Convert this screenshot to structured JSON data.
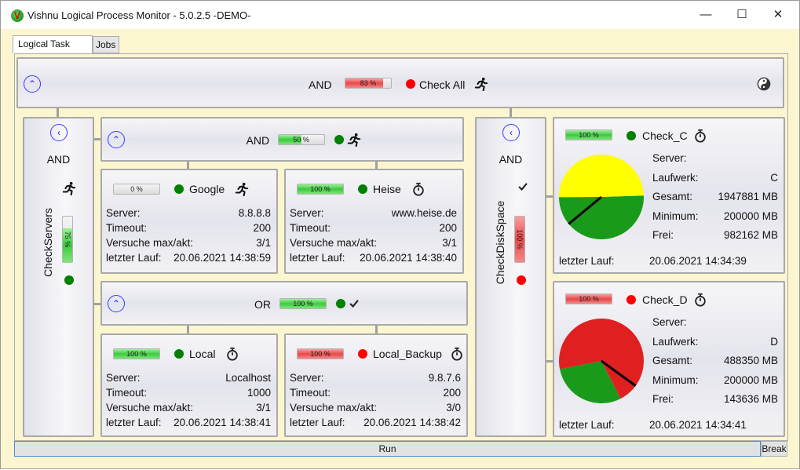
{
  "window": {
    "title": "Vishnu Logical Process Monitor - 5.0.2.5  -DEMO-",
    "app_icon_letter": "V",
    "minimize": "—",
    "maximize": "☐",
    "close": "✕"
  },
  "tabs": [
    {
      "label": "Logical Task Tree",
      "active": true
    },
    {
      "label": "Jobs",
      "active": false
    }
  ],
  "colors": {
    "green": "#008000",
    "red": "#ff0000",
    "pie_used_ok": "#ffff00",
    "pie_free": "#1a9a1a",
    "pie_used_bad": "#e02020"
  },
  "root": {
    "operator": "AND",
    "progress": 83,
    "progress_label": "83 %",
    "progress_color": "red",
    "status": "red",
    "name": "Check All",
    "state_icon": "runner-icon",
    "right_icon": "yin-yang-icon"
  },
  "check_servers": {
    "name": "CheckServers",
    "operator": "AND",
    "progress": 75,
    "progress_label": "75 %",
    "progress_color": "green",
    "status": "green",
    "state_icon": "runner-icon"
  },
  "and_group": {
    "operator": "AND",
    "progress": 50,
    "progress_label": "50 %",
    "progress_color": "green",
    "status": "green",
    "state_icon": "runner-icon"
  },
  "or_group": {
    "operator": "OR",
    "progress": 100,
    "progress_label": "100 %",
    "progress_color": "green",
    "status": "green",
    "state_icon": "check-icon"
  },
  "labels": {
    "server": "Server:",
    "timeout": "Timeout:",
    "versuche": "Versuche max/akt:",
    "letzter_lauf": "letzter Lauf:",
    "laufwerk": "Laufwerk:",
    "gesamt": "Gesamt:",
    "minimum": "Minimum:",
    "frei": "Frei:"
  },
  "tasks": [
    {
      "name": "Google",
      "progress": 0,
      "progress_label": "0 %",
      "progress_color": "green",
      "status": "green",
      "state_icon": "runner-icon",
      "server": "8.8.8.8",
      "timeout": "200",
      "versuche": "3/1",
      "letzter_lauf": "20.06.2021 14:38:59"
    },
    {
      "name": "Heise",
      "progress": 100,
      "progress_label": "100 %",
      "progress_color": "green",
      "status": "green",
      "state_icon": "stopwatch-icon",
      "server": "www.heise.de",
      "timeout": "200",
      "versuche": "3/1",
      "letzter_lauf": "20.06.2021 14:38:40"
    },
    {
      "name": "Local",
      "progress": 100,
      "progress_label": "100 %",
      "progress_color": "green",
      "status": "green",
      "state_icon": "stopwatch-icon",
      "server": "Localhost",
      "timeout": "1000",
      "versuche": "3/1",
      "letzter_lauf": "20.06.2021 14:38:41"
    },
    {
      "name": "Local_Backup",
      "progress": 100,
      "progress_label": "100 %",
      "progress_color": "red",
      "status": "red",
      "state_icon": "stopwatch-icon",
      "server": "9.8.7.6",
      "timeout": "200",
      "versuche": "3/0",
      "letzter_lauf": "20.06.2021 14:38:42"
    }
  ],
  "check_disk_space": {
    "name": "CheckDiskSpace",
    "operator": "AND",
    "progress": 100,
    "progress_label": "100 %",
    "progress_color": "red",
    "status": "red",
    "state_icon": "check-icon"
  },
  "disks": [
    {
      "name": "Check_C",
      "progress": 100,
      "progress_label": "100 %",
      "progress_color": "green",
      "status": "green",
      "state_icon": "stopwatch-icon",
      "server": "",
      "laufwerk": "C",
      "gesamt": "1947881 MB",
      "minimum": "200000 MB",
      "frei": "982162 MB",
      "total_mb": 1947881,
      "free_mb": 982162,
      "min_mb": 200000,
      "letzter_lauf": "20.06.2021 14:34:39"
    },
    {
      "name": "Check_D",
      "progress": 100,
      "progress_label": "100 %",
      "progress_color": "red",
      "status": "red",
      "state_icon": "stopwatch-icon",
      "server": "",
      "laufwerk": "D",
      "gesamt": "488350 MB",
      "minimum": "200000 MB",
      "frei": "143636 MB",
      "total_mb": 488350,
      "free_mb": 143636,
      "min_mb": 200000,
      "letzter_lauf": "20.06.2021 14:34:41"
    }
  ],
  "footer": {
    "run": "Run",
    "break": "Break"
  }
}
